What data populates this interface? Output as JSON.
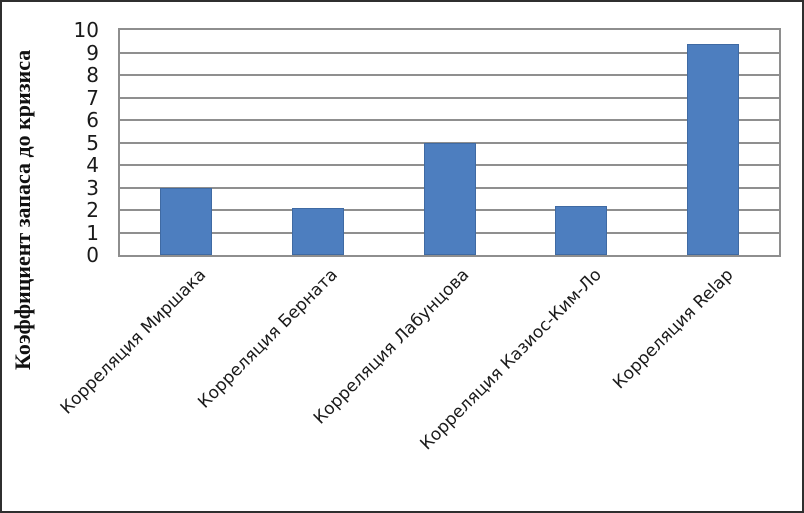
{
  "chart_data": {
    "type": "bar",
    "categories": [
      "Корреляция Миршака",
      "Корреляция Берната",
      "Корреляция Лабунцова",
      "Корреляция Казиос-Ким-Ло",
      "Корреляция Relap"
    ],
    "values": [
      3.0,
      2.1,
      5.0,
      2.2,
      9.4
    ],
    "title": "",
    "xlabel": "",
    "ylabel": "Коэффициент запаса до кризиса",
    "ylim": [
      0,
      10
    ],
    "ytick_step": 1,
    "yticks": [
      0,
      1,
      2,
      3,
      4,
      5,
      6,
      7,
      8,
      9,
      10
    ],
    "grid": true,
    "legend_position": "none",
    "bar_color": "#4d7ebf",
    "bar_border_color": "#3f6aa3",
    "grid_color": "#8f8f8f",
    "axis_color": "#8e8e8e",
    "frame_color": "#2f2f2f",
    "text_color": "#1a1a1a"
  }
}
